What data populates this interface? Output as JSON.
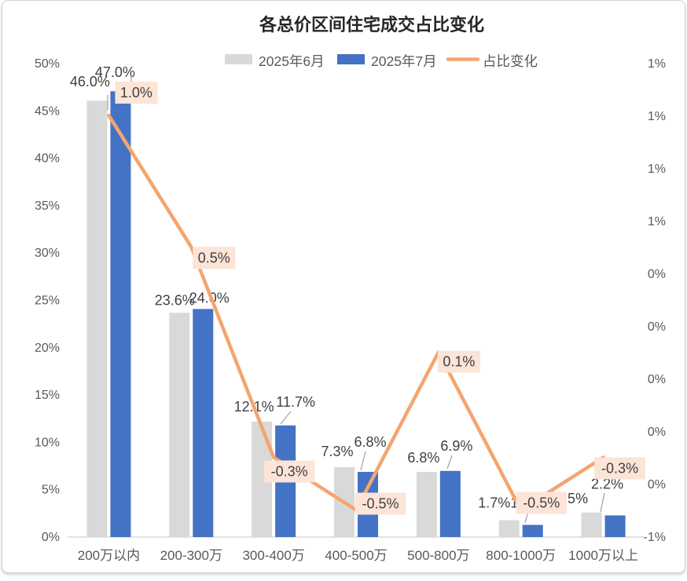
{
  "chart_data": {
    "type": "combo-bar-line",
    "title": "各总价区间住宅成交占比变化",
    "categories": [
      "200万以内",
      "200-300万",
      "300-400万",
      "400-500万",
      "500-800万",
      "800-1000万",
      "1000万以上"
    ],
    "series": [
      {
        "name": "2025年6月",
        "type": "bar",
        "axis": "left",
        "color": "#d9d9d9",
        "values": [
          46.0,
          23.6,
          12.1,
          7.3,
          6.8,
          1.7,
          2.5
        ],
        "labels": [
          "46.0%",
          "23.6%",
          "12.1%",
          "7.3%",
          "6.8%",
          "1.7%",
          "2.5%"
        ]
      },
      {
        "name": "2025年7月",
        "type": "bar",
        "axis": "left",
        "color": "#4472c4",
        "values": [
          47.0,
          24.0,
          11.7,
          6.8,
          6.9,
          1.2,
          2.2
        ],
        "labels": [
          "47.0%",
          "24.0%",
          "11.7%",
          "6.8%",
          "6.9%",
          "1.2%",
          "2.2%"
        ]
      },
      {
        "name": "占比变化",
        "type": "line",
        "axis": "right",
        "color": "#f4a56f",
        "label_bg": "#fce4d6",
        "values": [
          1.0,
          0.5,
          -0.3,
          -0.5,
          0.1,
          -0.5,
          -0.3
        ],
        "labels": [
          "1.0%",
          "0.5%",
          "-0.3%",
          "-0.5%",
          "0.1%",
          "-0.5%",
          "-0.3%"
        ]
      }
    ],
    "left_axis": {
      "min": 0,
      "max": 50,
      "tick_labels": [
        "50%",
        "45%",
        "40%",
        "35%",
        "30%",
        "25%",
        "20%",
        "15%",
        "10%",
        "5%",
        "0%"
      ]
    },
    "right_axis": {
      "min": -0.6,
      "max": 1.2,
      "tick_labels": [
        "1%",
        "1%",
        "1%",
        "1%",
        "0%",
        "0%",
        "0%",
        "0%",
        "0%",
        "-1%"
      ]
    },
    "legend_position": "top",
    "gridlines": false
  },
  "styles": {
    "axis_text": "#595959",
    "bar_label_text": "#404040",
    "badge_text": "#404040",
    "title_text": "#262626",
    "leader_line": "#a6a6a6",
    "axis_line": "#d9d9d9",
    "card_border": "#d2d2d2"
  }
}
